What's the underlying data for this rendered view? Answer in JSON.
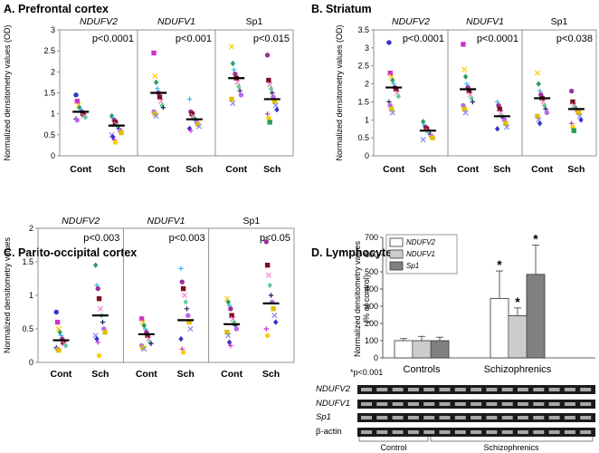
{
  "chart_data": [
    {
      "type": "scatter",
      "title": "A. Prefrontal cortex",
      "ylabel": "Normalized densitometry values (OD)",
      "ylim": [
        0,
        3
      ],
      "yticks": [
        "0",
        "0.5",
        "1",
        "1.5",
        "2",
        "2.5",
        "3"
      ],
      "groups": [
        {
          "name": "NDUFV2",
          "italic": true,
          "p": "p<0.0001",
          "categories": [
            "Cont",
            "Sch"
          ],
          "means": [
            1.05,
            0.72
          ],
          "points": [
            [
              1.45,
              1.3,
              1.2,
              1.15,
              1.1,
              1.05,
              1.0,
              0.95,
              0.92,
              0.88,
              0.85
            ],
            [
              0.95,
              0.9,
              0.85,
              0.8,
              0.75,
              0.7,
              0.65,
              0.6,
              0.55,
              0.5,
              0.45,
              0.38,
              0.32
            ]
          ]
        },
        {
          "name": "NDUFV1",
          "italic": true,
          "p": "p<0.001",
          "categories": [
            "Cont",
            "Sch"
          ],
          "means": [
            1.5,
            0.87
          ],
          "points": [
            [
              2.45,
              1.9,
              1.75,
              1.6,
              1.5,
              1.4,
              1.3,
              1.2,
              1.15,
              1.05,
              1.0,
              0.95
            ],
            [
              1.35,
              1.05,
              1.0,
              0.95,
              0.9,
              0.85,
              0.8,
              0.75,
              0.7,
              0.65,
              0.6
            ]
          ]
        },
        {
          "name": "Sp1",
          "italic": false,
          "p": "p<0.015",
          "categories": [
            "Cont",
            "Sch"
          ],
          "means": [
            1.85,
            1.35
          ],
          "points": [
            [
              2.6,
              2.2,
              2.05,
              1.95,
              1.85,
              1.75,
              1.65,
              1.55,
              1.45,
              1.35,
              1.25
            ],
            [
              2.4,
              1.8,
              1.7,
              1.6,
              1.5,
              1.4,
              1.3,
              1.2,
              1.1,
              1.0,
              0.9,
              0.8
            ]
          ]
        }
      ]
    },
    {
      "type": "scatter",
      "title": "B. Striatum",
      "ylabel": "Normalized densitometry values (OD)",
      "ylim": [
        0,
        3.5
      ],
      "yticks": [
        "0",
        "0.5",
        "1",
        "1.5",
        "2",
        "2.5",
        "3",
        "3.5"
      ],
      "groups": [
        {
          "name": "NDUFV2",
          "italic": true,
          "p": "p<0.0001",
          "categories": [
            "Cont",
            "Sch"
          ],
          "means": [
            1.9,
            0.7
          ],
          "points": [
            [
              3.15,
              2.3,
              2.2,
              2.1,
              2.0,
              1.9,
              1.85,
              1.75,
              1.65,
              1.5,
              1.4,
              1.3,
              1.2
            ],
            [
              0.95,
              0.85,
              0.8,
              0.75,
              0.7,
              0.65,
              0.6,
              0.55,
              0.5,
              0.45
            ]
          ]
        },
        {
          "name": "NDUFV1",
          "italic": true,
          "p": "p<0.0001",
          "categories": [
            "Cont",
            "Sch"
          ],
          "means": [
            1.85,
            1.1
          ],
          "points": [
            [
              3.1,
              2.4,
              2.2,
              2.0,
              1.9,
              1.8,
              1.7,
              1.6,
              1.5,
              1.4,
              1.3,
              1.2
            ],
            [
              1.5,
              1.4,
              1.3,
              1.2,
              1.1,
              1.05,
              1.0,
              0.9,
              0.8,
              0.75
            ]
          ]
        },
        {
          "name": "Sp1",
          "italic": false,
          "p": "p<0.038",
          "categories": [
            "Cont",
            "Sch"
          ],
          "means": [
            1.6,
            1.3
          ],
          "points": [
            [
              2.3,
              2.0,
              1.8,
              1.7,
              1.6,
              1.5,
              1.4,
              1.3,
              1.2,
              1.1,
              1.0,
              0.9
            ],
            [
              1.8,
              1.5,
              1.4,
              1.35,
              1.3,
              1.25,
              1.2,
              1.1,
              1.0,
              0.9,
              0.8,
              0.7
            ]
          ]
        }
      ]
    },
    {
      "type": "scatter",
      "title": "C. Parito-occipital cortex",
      "ylabel": "Normalized densitometry values",
      "ylim": [
        0,
        2
      ],
      "yticks": [
        "0",
        "0.5",
        "1",
        "1.5",
        "2"
      ],
      "groups": [
        {
          "name": "NDUFV2",
          "italic": true,
          "p": "p<0.003",
          "categories": [
            "Cont",
            "Sch"
          ],
          "means": [
            0.33,
            0.7
          ],
          "points": [
            [
              0.75,
              0.6,
              0.5,
              0.45,
              0.4,
              0.35,
              0.3,
              0.28,
              0.25,
              0.22,
              0.2,
              0.18
            ],
            [
              1.45,
              1.15,
              1.1,
              0.95,
              0.8,
              0.7,
              0.6,
              0.5,
              0.45,
              0.4,
              0.35,
              0.3,
              0.1
            ]
          ]
        },
        {
          "name": "NDUFV1",
          "italic": true,
          "p": "p<0.003",
          "categories": [
            "Cont",
            "Sch"
          ],
          "means": [
            0.42,
            0.63
          ],
          "points": [
            [
              0.65,
              0.6,
              0.55,
              0.5,
              0.45,
              0.4,
              0.35,
              0.3,
              0.28,
              0.25,
              0.22,
              0.2
            ],
            [
              1.4,
              1.2,
              1.1,
              1.0,
              0.9,
              0.8,
              0.7,
              0.6,
              0.5,
              0.35,
              0.2,
              0.15
            ]
          ]
        },
        {
          "name": "Sp1",
          "italic": false,
          "p": "p<0.05",
          "categories": [
            "Cont",
            "Sch"
          ],
          "means": [
            0.57,
            0.88
          ],
          "points": [
            [
              0.95,
              0.9,
              0.85,
              0.8,
              0.7,
              0.65,
              0.6,
              0.55,
              0.5,
              0.45,
              0.4,
              0.3,
              0.25
            ],
            [
              1.8,
              1.45,
              1.3,
              1.15,
              1.0,
              0.9,
              0.8,
              0.7,
              0.6,
              0.5,
              0.4
            ]
          ]
        }
      ]
    },
    {
      "type": "bar",
      "title": "D. Lymphocytes",
      "ylabel": "Normalized densitometry values",
      "ylabel2": "(% of control)",
      "ylim": [
        0,
        700
      ],
      "yticks": [
        "0",
        "100",
        "200",
        "300",
        "400",
        "500",
        "600",
        "700"
      ],
      "categories": [
        "Controls",
        "Schizophrenics"
      ],
      "series": [
        {
          "name": "NDUFV2",
          "values": [
            100,
            345
          ],
          "errors": [
            12,
            160
          ],
          "star": [
            false,
            true
          ]
        },
        {
          "name": "NDUFV1",
          "values": [
            100,
            245
          ],
          "errors": [
            25,
            45
          ],
          "star": [
            false,
            true
          ]
        },
        {
          "name": "Sp1",
          "values": [
            100,
            485
          ],
          "errors": [
            20,
            170
          ],
          "star": [
            false,
            true
          ]
        }
      ],
      "footnote": "*p<0.001",
      "blot_labels": [
        {
          "text": "NDUFV2",
          "italic": true
        },
        {
          "text": "NDUFV1",
          "italic": true
        },
        {
          "text": "Sp1",
          "italic": true
        },
        {
          "text": "β-actin",
          "italic": false
        }
      ],
      "blot_groups": [
        "Control",
        "Schizophrenics"
      ]
    }
  ],
  "colors": {
    "palette": [
      "#3333cc",
      "#cc33cc",
      "#ffcc00",
      "#2a9d5c",
      "#33bbee",
      "#993399",
      "#7b1020",
      "#ee88cc",
      "#66cc99",
      "#222266",
      "#bb66ee",
      "#e0c000",
      "#8888ee"
    ],
    "bar_ndufv2": "#ffffff",
    "bar_ndufv1": "#ffffff",
    "bar_sp1": "#808080",
    "mean_line": "#000000"
  }
}
